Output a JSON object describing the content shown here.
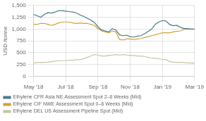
{
  "chart_data": {
    "type": "line",
    "ylabel": "USD /tonne",
    "categories": [
      "May '18",
      null,
      null,
      null,
      null,
      null,
      null,
      null,
      null,
      "Jul '18",
      null,
      null,
      null,
      null,
      null,
      null,
      null,
      null,
      "Sep '18",
      null,
      null,
      null,
      null,
      null,
      null,
      null,
      null,
      "Nov '18",
      null,
      null,
      null,
      null,
      null,
      null,
      null,
      null,
      "Jan '19",
      null,
      null,
      null,
      null,
      null,
      null,
      null,
      null,
      "Mar '19"
    ],
    "series": [
      {
        "name": "Ethylene CFR Asia NE Assessment Spot 2–6 Weeks (Mid)",
        "color": "#4a7a8a",
        "values": [
          1310,
          1280,
          1250,
          1310,
          1350,
          1340,
          1360,
          1390,
          1390,
          1380,
          1370,
          1360,
          1340,
          1300,
          1270,
          1230,
          1190,
          1140,
          1050,
          980,
          960,
          940,
          1010,
          980,
          880,
          860,
          870,
          840,
          830,
          850,
          860,
          900,
          950,
          1000,
          1100,
          1150,
          1180,
          1170,
          1100,
          1070,
          1080,
          1040,
          1010,
          1010,
          1000,
          1000
        ]
      },
      {
        "name": "Ethylene CIF NWE Assessment Spot 0–6 Weeks (Mid)",
        "color": "#d4a030",
        "values": [
          1100,
          1100,
          1120,
          1120,
          1100,
          1080,
          1100,
          1130,
          1150,
          1150,
          1150,
          1130,
          1120,
          1130,
          1120,
          1120,
          1100,
          1080,
          1010,
          960,
          940,
          920,
          960,
          940,
          780,
          770,
          790,
          790,
          780,
          790,
          800,
          820,
          840,
          860,
          880,
          900,
          920,
          920,
          920,
          940,
          950,
          960,
          990,
          1000,
          1000,
          1000
        ]
      },
      {
        "name": "Ethylene DEL US Assessment Pipeline Spot (Mid)",
        "color": "#c8c4a0",
        "values": [
          280,
          290,
          290,
          295,
          300,
          310,
          320,
          330,
          330,
          330,
          340,
          340,
          350,
          350,
          370,
          400,
          430,
          460,
          450,
          430,
          430,
          440,
          450,
          460,
          450,
          460,
          450,
          440,
          440,
          430,
          430,
          420,
          400,
          390,
          380,
          370,
          360,
          350,
          310,
          300,
          295,
          295,
          290,
          285,
          280,
          280
        ]
      }
    ],
    "ylim": [
      0,
      1500
    ],
    "yticks": [
      0,
      250,
      500,
      750,
      {
        "value": 1000,
        "label": "1,000"
      },
      {
        "value": 1250,
        "label": "1,250"
      },
      {
        "value": 1500,
        "label": "1,500"
      }
    ],
    "grid": true,
    "legend": "lower left"
  }
}
